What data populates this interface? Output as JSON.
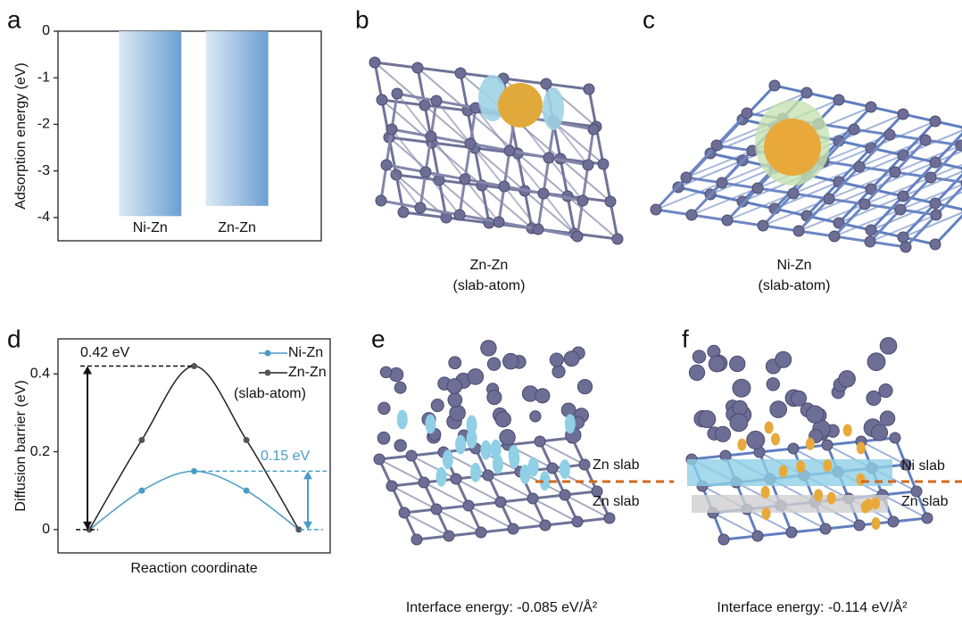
{
  "panel_labels": [
    "a",
    "b",
    "c",
    "d",
    "e",
    "f"
  ],
  "chart_data": [
    {
      "type": "bar",
      "ylabel": "Adsorption energy (eV)",
      "categories": [
        "Ni-Zn",
        "Zn-Zn"
      ],
      "values": [
        -3.97,
        -3.75
      ],
      "color": "#6b9fd2",
      "ylim": [
        -4.5,
        0
      ],
      "yticks": [
        0,
        -1,
        -2,
        -3,
        -4
      ]
    },
    {
      "type": "line",
      "ylabel": "Diffusion barrier (eV)",
      "xlabel": "Reaction coordinate",
      "x": [
        0,
        1,
        2,
        3,
        4
      ],
      "xlim": [
        -0.6,
        4.6
      ],
      "ylim": [
        -0.06,
        0.49
      ],
      "yticks": [
        0,
        0.2,
        0.4
      ],
      "series": [
        {
          "name": "Ni-Zn",
          "color": "#4a9cc6",
          "values": [
            0,
            0.1,
            0.15,
            0.1,
            0
          ]
        },
        {
          "name": "Zn-Zn",
          "color": "#222222",
          "values": [
            0,
            0.23,
            0.42,
            0.23,
            0
          ]
        }
      ],
      "legend_note": "(slab-atom)",
      "annotations": [
        "0.42 eV",
        "0.15 eV"
      ]
    }
  ],
  "panels": {
    "b": {
      "caption": [
        "Zn-Zn",
        "(slab-atom)"
      ]
    },
    "c": {
      "caption": [
        "Ni-Zn",
        "(slab-atom)"
      ]
    },
    "e": {
      "slab_labels": [
        "Zn slab",
        "Zn slab"
      ],
      "caption": "Interface energy: -0.085 eV/Å²"
    },
    "f": {
      "slab_labels": [
        "Ni slab",
        "Zn slab"
      ],
      "caption": "Interface energy: -0.114 eV/Å²"
    }
  }
}
